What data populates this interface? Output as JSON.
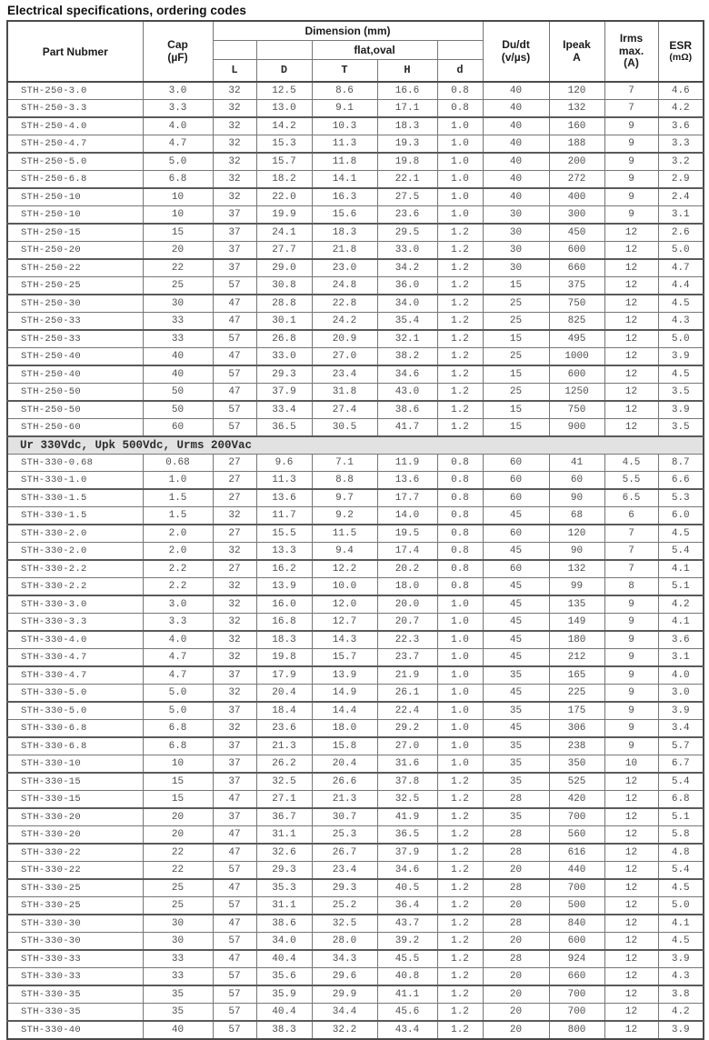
{
  "title": "Electrical specifications, ordering codes",
  "colors": {
    "border": "#767676",
    "border_heavy": "#4a4a4a",
    "text": "#4e4e4e",
    "header_text": "#1b1b1b",
    "section_bg": "#e2e2e2",
    "page_bg": "#ffffff"
  },
  "table": {
    "header": {
      "part": "Part Nubmer",
      "cap": [
        "Cap",
        "(µF)"
      ],
      "dimension": "Dimension (mm)",
      "flat_oval": "flat,oval",
      "dims": [
        "L",
        "D",
        "T",
        "H",
        "d"
      ],
      "dudt": [
        "Du/dt",
        "(v/µs)"
      ],
      "ipeak": [
        "Ipeak",
        "A"
      ],
      "irms": [
        "Irms",
        "max.",
        "(A)"
      ],
      "esr": [
        "ESR",
        "(mΩ)"
      ]
    },
    "rows": [
      {
        "type": "data",
        "cells": [
          "STH-250-3.0",
          "3.0",
          "32",
          "12.5",
          "8.6",
          "16.6",
          "0.8",
          "40",
          "120",
          "7",
          "4.6"
        ]
      },
      {
        "type": "data",
        "cells": [
          "STH-250-3.3",
          "3.3",
          "32",
          "13.0",
          "9.1",
          "17.1",
          "0.8",
          "40",
          "132",
          "7",
          "4.2"
        ]
      },
      {
        "type": "data",
        "cells": [
          "STH-250-4.0",
          "4.0",
          "32",
          "14.2",
          "10.3",
          "18.3",
          "1.0",
          "40",
          "160",
          "9",
          "3.6"
        ]
      },
      {
        "type": "data",
        "cells": [
          "STH-250-4.7",
          "4.7",
          "32",
          "15.3",
          "11.3",
          "19.3",
          "1.0",
          "40",
          "188",
          "9",
          "3.3"
        ]
      },
      {
        "type": "data",
        "cells": [
          "STH-250-5.0",
          "5.0",
          "32",
          "15.7",
          "11.8",
          "19.8",
          "1.0",
          "40",
          "200",
          "9",
          "3.2"
        ]
      },
      {
        "type": "data",
        "cells": [
          "STH-250-6.8",
          "6.8",
          "32",
          "18.2",
          "14.1",
          "22.1",
          "1.0",
          "40",
          "272",
          "9",
          "2.9"
        ]
      },
      {
        "type": "data",
        "cells": [
          "STH-250-10",
          "10",
          "32",
          "22.0",
          "16.3",
          "27.5",
          "1.0",
          "40",
          "400",
          "9",
          "2.4"
        ]
      },
      {
        "type": "data",
        "cells": [
          "STH-250-10",
          "10",
          "37",
          "19.9",
          "15.6",
          "23.6",
          "1.0",
          "30",
          "300",
          "9",
          "3.1"
        ]
      },
      {
        "type": "data",
        "cells": [
          "STH-250-15",
          "15",
          "37",
          "24.1",
          "18.3",
          "29.5",
          "1.2",
          "30",
          "450",
          "12",
          "2.6"
        ]
      },
      {
        "type": "data",
        "cells": [
          "STH-250-20",
          "20",
          "37",
          "27.7",
          "21.8",
          "33.0",
          "1.2",
          "30",
          "600",
          "12",
          "5.0"
        ]
      },
      {
        "type": "data",
        "cells": [
          "STH-250-22",
          "22",
          "37",
          "29.0",
          "23.0",
          "34.2",
          "1.2",
          "30",
          "660",
          "12",
          "4.7"
        ]
      },
      {
        "type": "data",
        "cells": [
          "STH-250-25",
          "25",
          "57",
          "30.8",
          "24.8",
          "36.0",
          "1.2",
          "15",
          "375",
          "12",
          "4.4"
        ]
      },
      {
        "type": "data",
        "cells": [
          "STH-250-30",
          "30",
          "47",
          "28.8",
          "22.8",
          "34.0",
          "1.2",
          "25",
          "750",
          "12",
          "4.5"
        ]
      },
      {
        "type": "data",
        "cells": [
          "STH-250-33",
          "33",
          "47",
          "30.1",
          "24.2",
          "35.4",
          "1.2",
          "25",
          "825",
          "12",
          "4.3"
        ]
      },
      {
        "type": "data",
        "cells": [
          "STH-250-33",
          "33",
          "57",
          "26.8",
          "20.9",
          "32.1",
          "1.2",
          "15",
          "495",
          "12",
          "5.0"
        ]
      },
      {
        "type": "data",
        "cells": [
          "STH-250-40",
          "40",
          "47",
          "33.0",
          "27.0",
          "38.2",
          "1.2",
          "25",
          "1000",
          "12",
          "3.9"
        ]
      },
      {
        "type": "data",
        "cells": [
          "STH-250-40",
          "40",
          "57",
          "29.3",
          "23.4",
          "34.6",
          "1.2",
          "15",
          "600",
          "12",
          "4.5"
        ]
      },
      {
        "type": "data",
        "cells": [
          "STH-250-50",
          "50",
          "47",
          "37.9",
          "31.8",
          "43.0",
          "1.2",
          "25",
          "1250",
          "12",
          "3.5"
        ]
      },
      {
        "type": "data",
        "cells": [
          "STH-250-50",
          "50",
          "57",
          "33.4",
          "27.4",
          "38.6",
          "1.2",
          "15",
          "750",
          "12",
          "3.9"
        ]
      },
      {
        "type": "data",
        "cells": [
          "STH-250-60",
          "60",
          "57",
          "36.5",
          "30.5",
          "41.7",
          "1.2",
          "15",
          "900",
          "12",
          "3.5"
        ]
      },
      {
        "type": "section",
        "label": "Ur 330Vdc,  Upk 500Vdc,  Urms 200Vac"
      },
      {
        "type": "data",
        "cells": [
          "STH-330-0.68",
          "0.68",
          "27",
          "9.6",
          "7.1",
          "11.9",
          "0.8",
          "60",
          "41",
          "4.5",
          "8.7"
        ]
      },
      {
        "type": "data",
        "cells": [
          "STH-330-1.0",
          "1.0",
          "27",
          "11.3",
          "8.8",
          "13.6",
          "0.8",
          "60",
          "60",
          "5.5",
          "6.6"
        ]
      },
      {
        "type": "data",
        "cells": [
          "STH-330-1.5",
          "1.5",
          "27",
          "13.6",
          "9.7",
          "17.7",
          "0.8",
          "60",
          "90",
          "6.5",
          "5.3"
        ]
      },
      {
        "type": "data",
        "cells": [
          "STH-330-1.5",
          "1.5",
          "32",
          "11.7",
          "9.2",
          "14.0",
          "0.8",
          "45",
          "68",
          "6",
          "6.0"
        ]
      },
      {
        "type": "data",
        "cells": [
          "STH-330-2.0",
          "2.0",
          "27",
          "15.5",
          "11.5",
          "19.5",
          "0.8",
          "60",
          "120",
          "7",
          "4.5"
        ]
      },
      {
        "type": "data",
        "cells": [
          "STH-330-2.0",
          "2.0",
          "32",
          "13.3",
          "9.4",
          "17.4",
          "0.8",
          "45",
          "90",
          "7",
          "5.4"
        ]
      },
      {
        "type": "data",
        "cells": [
          "STH-330-2.2",
          "2.2",
          "27",
          "16.2",
          "12.2",
          "20.2",
          "0.8",
          "60",
          "132",
          "7",
          "4.1"
        ]
      },
      {
        "type": "data",
        "cells": [
          "STH-330-2.2",
          "2.2",
          "32",
          "13.9",
          "10.0",
          "18.0",
          "0.8",
          "45",
          "99",
          "8",
          "5.1"
        ]
      },
      {
        "type": "data",
        "cells": [
          "STH-330-3.0",
          "3.0",
          "32",
          "16.0",
          "12.0",
          "20.0",
          "1.0",
          "45",
          "135",
          "9",
          "4.2"
        ]
      },
      {
        "type": "data",
        "cells": [
          "STH-330-3.3",
          "3.3",
          "32",
          "16.8",
          "12.7",
          "20.7",
          "1.0",
          "45",
          "149",
          "9",
          "4.1"
        ]
      },
      {
        "type": "data",
        "cells": [
          "STH-330-4.0",
          "4.0",
          "32",
          "18.3",
          "14.3",
          "22.3",
          "1.0",
          "45",
          "180",
          "9",
          "3.6"
        ]
      },
      {
        "type": "data",
        "cells": [
          "STH-330-4.7",
          "4.7",
          "32",
          "19.8",
          "15.7",
          "23.7",
          "1.0",
          "45",
          "212",
          "9",
          "3.1"
        ]
      },
      {
        "type": "data",
        "cells": [
          "STH-330-4.7",
          "4.7",
          "37",
          "17.9",
          "13.9",
          "21.9",
          "1.0",
          "35",
          "165",
          "9",
          "4.0"
        ]
      },
      {
        "type": "data",
        "cells": [
          "STH-330-5.0",
          "5.0",
          "32",
          "20.4",
          "14.9",
          "26.1",
          "1.0",
          "45",
          "225",
          "9",
          "3.0"
        ]
      },
      {
        "type": "data",
        "cells": [
          "STH-330-5.0",
          "5.0",
          "37",
          "18.4",
          "14.4",
          "22.4",
          "1.0",
          "35",
          "175",
          "9",
          "3.9"
        ]
      },
      {
        "type": "data",
        "cells": [
          "STH-330-6.8",
          "6.8",
          "32",
          "23.6",
          "18.0",
          "29.2",
          "1.0",
          "45",
          "306",
          "9",
          "3.4"
        ]
      },
      {
        "type": "data",
        "cells": [
          "STH-330-6.8",
          "6.8",
          "37",
          "21.3",
          "15.8",
          "27.0",
          "1.0",
          "35",
          "238",
          "9",
          "5.7"
        ]
      },
      {
        "type": "data",
        "cells": [
          "STH-330-10",
          "10",
          "37",
          "26.2",
          "20.4",
          "31.6",
          "1.0",
          "35",
          "350",
          "10",
          "6.7"
        ]
      },
      {
        "type": "data",
        "cells": [
          "STH-330-15",
          "15",
          "37",
          "32.5",
          "26.6",
          "37.8",
          "1.2",
          "35",
          "525",
          "12",
          "5.4"
        ]
      },
      {
        "type": "data",
        "cells": [
          "STH-330-15",
          "15",
          "47",
          "27.1",
          "21.3",
          "32.5",
          "1.2",
          "28",
          "420",
          "12",
          "6.8"
        ]
      },
      {
        "type": "data",
        "cells": [
          "STH-330-20",
          "20",
          "37",
          "36.7",
          "30.7",
          "41.9",
          "1.2",
          "35",
          "700",
          "12",
          "5.1"
        ]
      },
      {
        "type": "data",
        "cells": [
          "STH-330-20",
          "20",
          "47",
          "31.1",
          "25.3",
          "36.5",
          "1.2",
          "28",
          "560",
          "12",
          "5.8"
        ]
      },
      {
        "type": "data",
        "cells": [
          "STH-330-22",
          "22",
          "47",
          "32.6",
          "26.7",
          "37.9",
          "1.2",
          "28",
          "616",
          "12",
          "4.8"
        ]
      },
      {
        "type": "data",
        "cells": [
          "STH-330-22",
          "22",
          "57",
          "29.3",
          "23.4",
          "34.6",
          "1.2",
          "20",
          "440",
          "12",
          "5.4"
        ]
      },
      {
        "type": "data",
        "cells": [
          "STH-330-25",
          "25",
          "47",
          "35.3",
          "29.3",
          "40.5",
          "1.2",
          "28",
          "700",
          "12",
          "4.5"
        ]
      },
      {
        "type": "data",
        "cells": [
          "STH-330-25",
          "25",
          "57",
          "31.1",
          "25.2",
          "36.4",
          "1.2",
          "20",
          "500",
          "12",
          "5.0"
        ]
      },
      {
        "type": "data",
        "cells": [
          "STH-330-30",
          "30",
          "47",
          "38.6",
          "32.5",
          "43.7",
          "1.2",
          "28",
          "840",
          "12",
          "4.1"
        ]
      },
      {
        "type": "data",
        "cells": [
          "STH-330-30",
          "30",
          "57",
          "34.0",
          "28.0",
          "39.2",
          "1.2",
          "20",
          "600",
          "12",
          "4.5"
        ]
      },
      {
        "type": "data",
        "cells": [
          "STH-330-33",
          "33",
          "47",
          "40.4",
          "34.3",
          "45.5",
          "1.2",
          "28",
          "924",
          "12",
          "3.9"
        ]
      },
      {
        "type": "data",
        "cells": [
          "STH-330-33",
          "33",
          "57",
          "35.6",
          "29.6",
          "40.8",
          "1.2",
          "20",
          "660",
          "12",
          "4.3"
        ]
      },
      {
        "type": "data",
        "cells": [
          "STH-330-35",
          "35",
          "57",
          "35.9",
          "29.9",
          "41.1",
          "1.2",
          "20",
          "700",
          "12",
          "3.8"
        ]
      },
      {
        "type": "data",
        "cells": [
          "STH-330-35",
          "35",
          "57",
          "40.4",
          "34.4",
          "45.6",
          "1.2",
          "20",
          "700",
          "12",
          "4.2"
        ]
      },
      {
        "type": "data",
        "cells": [
          "STH-330-40",
          "40",
          "57",
          "38.3",
          "32.2",
          "43.4",
          "1.2",
          "20",
          "800",
          "12",
          "3.9"
        ]
      }
    ]
  }
}
